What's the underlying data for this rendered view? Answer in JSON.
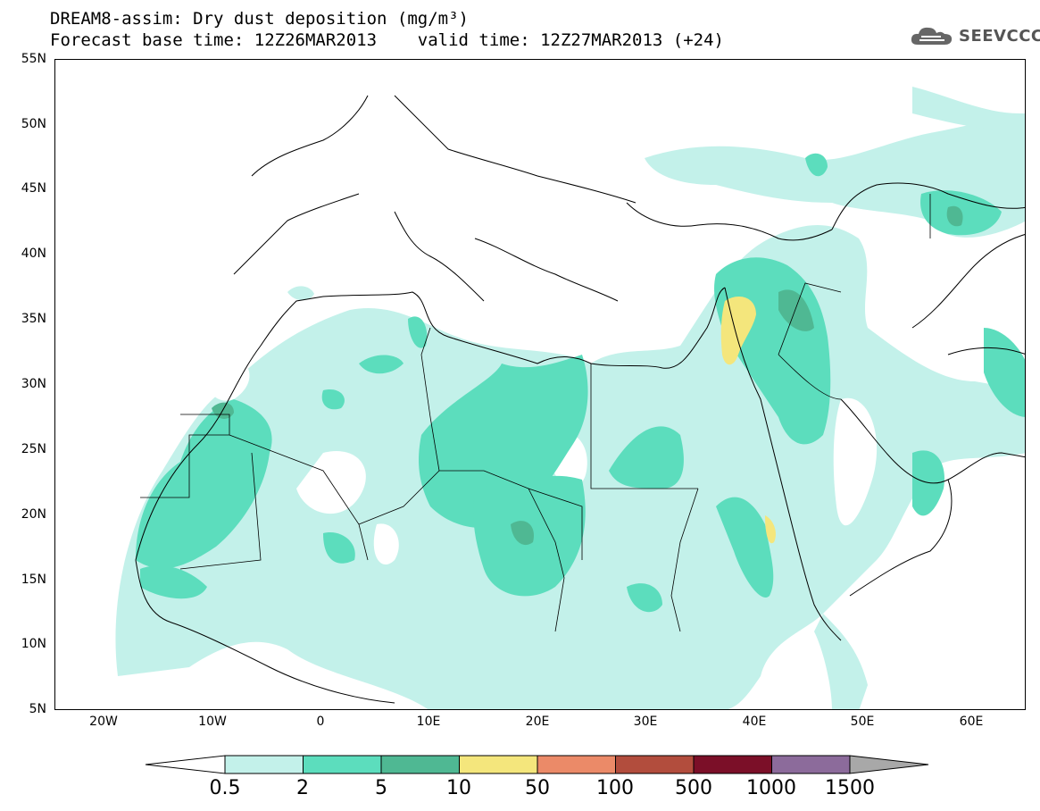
{
  "title_line1": "DREAM8-assim: Dry dust deposition (mg/m³)",
  "title_line2": "Forecast base time: 12Z26MAR2013    valid time: 12Z27MAR2013 (+24)",
  "logo_text": "SEEVCCC",
  "logo_icon": "cloud-icon",
  "y_axis_labels": [
    "55N",
    "50N",
    "45N",
    "40N",
    "35N",
    "30N",
    "25N",
    "20N",
    "15N",
    "10N",
    "5N"
  ],
  "x_axis_labels": [
    "20W",
    "10W",
    "0",
    "10E",
    "20E",
    "30E",
    "40E",
    "50E",
    "60E"
  ],
  "colorbar": {
    "labels": [
      "0.5",
      "2",
      "5",
      "10",
      "50",
      "100",
      "500",
      "1000",
      "1500"
    ],
    "colors": [
      "#c3f1ea",
      "#5cddbd",
      "#4fb893",
      "#f4e67c",
      "#eb8a68",
      "#b24d3d",
      "#7b0f28",
      "#8c6b9b"
    ],
    "over_color": "#a8a8a8",
    "under_color": "#ffffff"
  },
  "map_colors": {
    "level_0_5": "#c3f1ea",
    "level_2": "#5cddbd",
    "level_5": "#4fb893",
    "level_10": "#f4e67c",
    "coastline": "#000000"
  }
}
